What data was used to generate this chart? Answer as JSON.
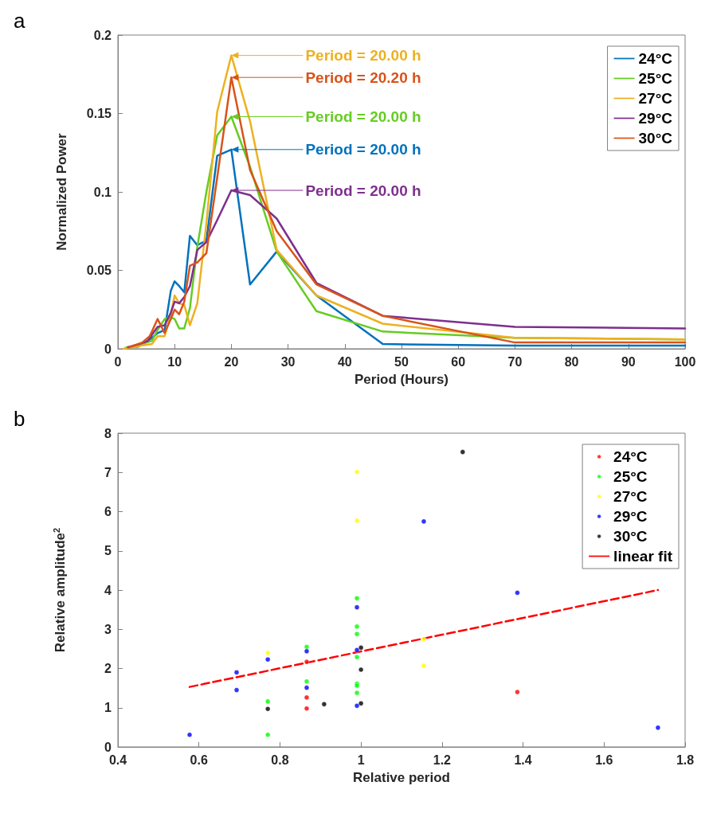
{
  "chart_data": [
    {
      "type": "line",
      "title": "a",
      "xlabel": "Period (Hours)",
      "ylabel": "Normalized Power",
      "xlim": [
        0,
        100
      ],
      "xticks": [
        0,
        10,
        20,
        30,
        40,
        50,
        60,
        70,
        80,
        90,
        100
      ],
      "ylim": [
        0,
        0.2
      ],
      "yticks": [
        0,
        0.05,
        0.1,
        0.15,
        0.2
      ],
      "grid": false,
      "legend": "top right",
      "marker": "none",
      "line_style": "solid",
      "series": [
        {
          "name": "24°C",
          "color": "#0072bd",
          "x": [
            1.2,
            3,
            4.5,
            6,
            7,
            8.24,
            9.33,
            10,
            10.8,
            11.7,
            12.7,
            14,
            15.6,
            17.5,
            20,
            23.3,
            28,
            35,
            46.7,
            70,
            100
          ],
          "values": [
            0,
            0.002,
            0.003,
            0.007,
            0.01,
            0.012,
            0.037,
            0.043,
            0.04,
            0.036,
            0.072,
            0.066,
            0.069,
            0.123,
            0.127,
            0.041,
            0.062,
            0.034,
            0.003,
            0.002,
            0.002
          ]
        },
        {
          "name": "25°C",
          "color": "#66cc22",
          "x": [
            1.5,
            3.4,
            5,
            6,
            7,
            8.24,
            9.33,
            10,
            10.8,
            11.7,
            12.7,
            14,
            15.6,
            17.5,
            20,
            23.3,
            28,
            35,
            46.7,
            70,
            100
          ],
          "values": [
            0.001,
            0.001,
            0.004,
            0.005,
            0.012,
            0.019,
            0.02,
            0.019,
            0.013,
            0.013,
            0.026,
            0.065,
            0.1,
            0.136,
            0.148,
            0.116,
            0.062,
            0.024,
            0.011,
            0.007,
            0.006
          ]
        },
        {
          "name": "27°C",
          "color": "#edb120",
          "x": [
            1,
            2.6,
            4,
            6,
            7,
            8.24,
            9.33,
            10,
            10.8,
            11.7,
            12.7,
            14,
            15.6,
            17.5,
            20,
            23.3,
            28,
            35,
            46.7,
            70,
            100
          ],
          "values": [
            0,
            0.001,
            0.002,
            0.003,
            0.008,
            0.008,
            0.022,
            0.034,
            0.029,
            0.028,
            0.015,
            0.029,
            0.08,
            0.151,
            0.187,
            0.145,
            0.063,
            0.034,
            0.016,
            0.007,
            0.006
          ]
        },
        {
          "name": "29°C",
          "color": "#7e2f8e",
          "x": [
            1.8,
            3.8,
            5.3,
            6,
            7,
            8.24,
            9.33,
            10,
            10.8,
            11.7,
            12.7,
            14,
            15.6,
            17.5,
            20,
            23.3,
            28,
            35,
            46.7,
            70,
            100
          ],
          "values": [
            0.001,
            0.003,
            0.005,
            0.009,
            0.014,
            0.015,
            0.023,
            0.03,
            0.029,
            0.033,
            0.04,
            0.063,
            0.068,
            0.082,
            0.101,
            0.098,
            0.083,
            0.042,
            0.021,
            0.014,
            0.013
          ]
        },
        {
          "name": "30°C",
          "color": "#d95319",
          "x": [
            2,
            4.3,
            5.6,
            6,
            7,
            8.24,
            9.33,
            10,
            10.8,
            11.7,
            12.7,
            14,
            15.6,
            17.5,
            20,
            23.3,
            28,
            35,
            46.7,
            70,
            100
          ],
          "values": [
            0.001,
            0.004,
            0.008,
            0.011,
            0.019,
            0.01,
            0.019,
            0.025,
            0.022,
            0.03,
            0.053,
            0.055,
            0.061,
            0.109,
            0.173,
            0.114,
            0.075,
            0.041,
            0.021,
            0.004,
            0.004
          ]
        }
      ],
      "annotations": [
        "Period = 20.00 h",
        "Period = 20.00 h",
        "Period = 20.00 h",
        "Period = 20.00 h",
        "Period = 20.20 h"
      ]
    },
    {
      "type": "scatter",
      "title": "b",
      "xlabel": "Relative period",
      "ylabel": "Relative amplitude$^{2}$",
      "xlim": [
        0.4,
        1.8
      ],
      "xticks": [
        0.4,
        0.6,
        0.8,
        1,
        1.2,
        1.4,
        1.6,
        1.8
      ],
      "ylim": [
        0,
        8
      ],
      "yticks": [
        0,
        1,
        2,
        3,
        4,
        5,
        6,
        7,
        8
      ],
      "grid": false,
      "legend": "top right",
      "marker": "circle",
      "series": [
        {
          "name": "24°C",
          "color": "#ff0000",
          "x": [
            0.866,
            0.866,
            0.866,
            1.386
          ],
          "values": [
            2.17,
            1.26,
            0.98,
            1.4
          ]
        },
        {
          "name": "25°C",
          "color": "#00ff00",
          "x": [
            0.77,
            0.77,
            0.866,
            0.866,
            0.99,
            0.99,
            0.99,
            0.99,
            0.99,
            0.99,
            0.99
          ],
          "values": [
            1.16,
            0.31,
            2.55,
            1.67,
            3.79,
            3.07,
            2.88,
            2.29,
            1.61,
            1.56,
            1.38
          ]
        },
        {
          "name": "27°C",
          "color": "#ffff00",
          "x": [
            0.77,
            0.99,
            0.99,
            1.155,
            1.155
          ],
          "values": [
            2.4,
            7.01,
            5.77,
            2.75,
            2.07
          ]
        },
        {
          "name": "29°C",
          "color": "#0000ff",
          "x": [
            0.577,
            0.693,
            0.693,
            0.77,
            0.866,
            0.866,
            0.99,
            0.99,
            0.99,
            1.155,
            1.386,
            1.733
          ],
          "values": [
            0.31,
            1.9,
            1.45,
            2.23,
            2.44,
            1.51,
            3.56,
            2.47,
            1.05,
            5.75,
            3.93,
            0.49
          ]
        },
        {
          "name": "30°C",
          "color": "#000000",
          "x": [
            0.77,
            0.909,
            1,
            1,
            1,
            1.251
          ],
          "values": [
            0.97,
            1.09,
            2.53,
            1.97,
            1.11,
            7.52
          ]
        },
        {
          "name": "linear fit",
          "type": "line",
          "color": "#ff0000",
          "marker": "none",
          "line_style": "dashed",
          "x": [
            0.577,
            1.733
          ],
          "values": [
            1.53,
            4.0
          ]
        }
      ]
    }
  ]
}
